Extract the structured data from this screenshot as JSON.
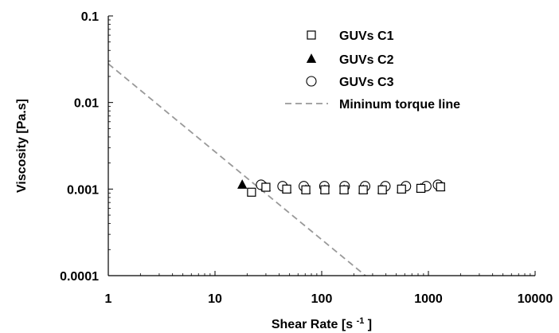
{
  "chart_data": {
    "type": "scatter",
    "title": "",
    "xlabel": "Shear Rate [s",
    "xlabel_sup": "-1",
    "xlabel_end": "]",
    "ylabel": "Viscosity [Pa.s]",
    "xscale": "log",
    "yscale": "log",
    "xlim": [
      1,
      10000
    ],
    "ylim": [
      0.0001,
      0.1
    ],
    "x_tick_labels": [
      "1",
      "10",
      "100",
      "1000",
      "10000"
    ],
    "y_tick_labels": [
      "0.0001",
      "0.001",
      "0.01",
      "0.1"
    ],
    "grid": false,
    "legend_position": "top-right",
    "series": [
      {
        "name": "GUVs C1",
        "marker": "open-square",
        "x": [
          22,
          30,
          47,
          71,
          107,
          162,
          245,
          370,
          560,
          850,
          1300
        ],
        "y": [
          0.00092,
          0.00105,
          0.001,
          0.00098,
          0.00098,
          0.00098,
          0.00098,
          0.00098,
          0.001,
          0.00102,
          0.00106
        ]
      },
      {
        "name": "GUVs C2",
        "marker": "filled-triangle",
        "x": [
          18,
          30,
          47,
          71,
          107,
          162,
          245,
          370,
          560,
          850,
          1300
        ],
        "y": [
          0.00112,
          0.00105,
          0.001,
          0.00098,
          0.00098,
          0.00098,
          0.00098,
          0.00098,
          0.001,
          0.00102,
          0.00106
        ]
      },
      {
        "name": "GUVs C3",
        "marker": "open-circle",
        "x": [
          27,
          43,
          68,
          106,
          164,
          255,
          395,
          615,
          955,
          1230
        ],
        "y": [
          0.00112,
          0.00108,
          0.00108,
          0.00108,
          0.00108,
          0.00108,
          0.00108,
          0.00108,
          0.00108,
          0.00112
        ]
      },
      {
        "name": "Mininum torque line",
        "style": "dashed-line",
        "x": [
          1,
          257
        ],
        "y": [
          0.028,
          0.0001
        ]
      }
    ]
  }
}
